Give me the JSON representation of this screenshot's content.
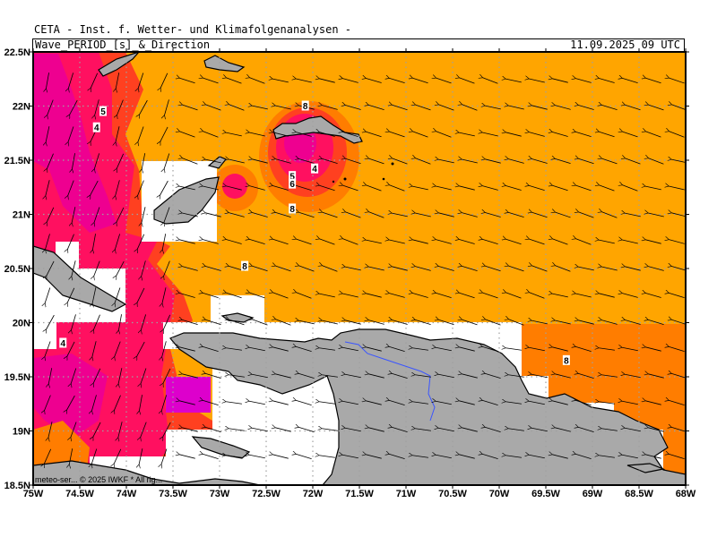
{
  "header": {
    "title": "CETA - Inst. f. Wetter- und Klimafolgenanalysen -",
    "subtitle": "Wave_PERIOD_[s]_&_Direction",
    "timestamp": "11.09.2025 09 UTC"
  },
  "map": {
    "lat_labels": [
      "22.5N",
      "22N",
      "21.5N",
      "21N",
      "20.5N",
      "20N",
      "19.5N",
      "19N",
      "18.5N"
    ],
    "lon_labels": [
      "75W",
      "74.5W",
      "74W",
      "73.5W",
      "73W",
      "72.5W",
      "72W",
      "71.5W",
      "71W",
      "70.5W",
      "70W",
      "69.5W",
      "69W",
      "68.5W",
      "68W"
    ],
    "contour_labels": [
      {
        "text": "5",
        "lon": -74.25,
        "lat": 21.95
      },
      {
        "text": "4",
        "lon": -74.32,
        "lat": 21.8
      },
      {
        "text": "8",
        "lon": -72.08,
        "lat": 22.0
      },
      {
        "text": "4",
        "lon": -71.98,
        "lat": 21.42
      },
      {
        "text": "5",
        "lon": -72.22,
        "lat": 21.35
      },
      {
        "text": "6",
        "lon": -72.22,
        "lat": 21.28
      },
      {
        "text": "8",
        "lon": -72.22,
        "lat": 21.05
      },
      {
        "text": "8",
        "lon": -72.73,
        "lat": 20.52
      },
      {
        "text": "4",
        "lon": -74.68,
        "lat": 19.81
      },
      {
        "text": "8",
        "lon": -69.28,
        "lat": 19.65
      }
    ],
    "wave_direction": "from east (arrows pointing west / southwest)",
    "colors": {
      "period_8s": "#ffa500",
      "period_7s": "#ff7d00",
      "period_6s": "#ff4020",
      "period_5s": "#ff1060",
      "period_4s": "#ee0090",
      "land": "#a9a9a9",
      "river": "#3a55ff"
    }
  },
  "footer": {
    "copyright": "meteo-ser... © 2025 IWKF * All rig..."
  }
}
